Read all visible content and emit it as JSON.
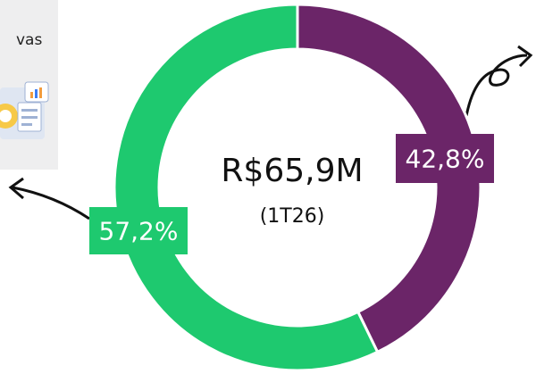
{
  "chart_data": {
    "type": "donut",
    "values": [
      42.8,
      57.2
    ],
    "value_labels": [
      "42,8%",
      "57,2%"
    ],
    "colors": [
      "#6b2568",
      "#1ec96f"
    ],
    "center_title": "R$65,9M",
    "center_subtitle": "(1T26)",
    "annotations": [
      "vas"
    ]
  }
}
